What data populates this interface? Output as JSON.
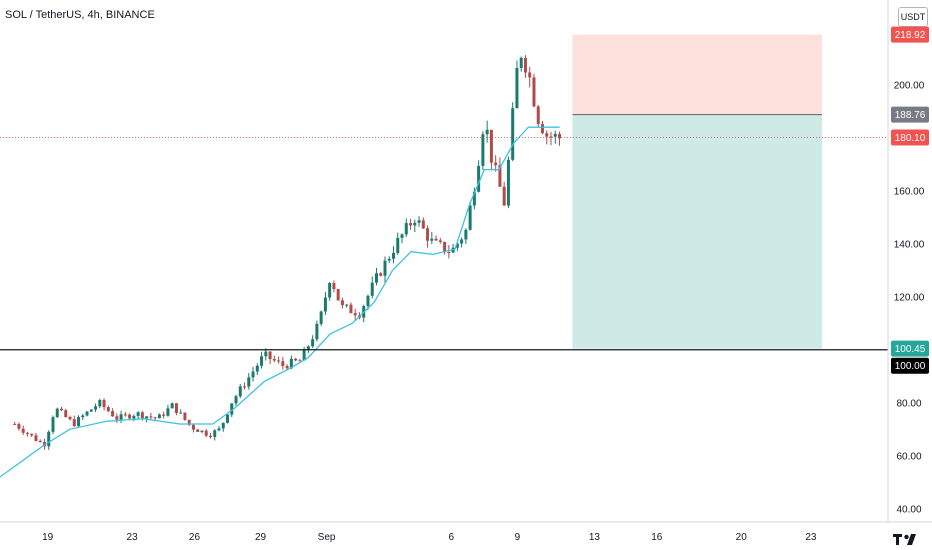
{
  "header": {
    "symbol_title": "SOL / TetherUS, 4h, BINANCE",
    "currency": "USDT"
  },
  "colors": {
    "up_candle": "#1b7a6e",
    "down_candle": "#b04b4b",
    "ma_line": "#3fc1e0",
    "target_zone": "#cdeae6",
    "stop_zone": "#fde0dc",
    "price_line": "#e53935"
  },
  "chart_data": {
    "type": "candlestick",
    "title": "SOL / TetherUS, 4h, BINANCE",
    "ylim": [
      35,
      232
    ],
    "y_ticks": [
      40,
      60,
      80,
      100,
      120,
      140,
      160,
      180,
      200
    ],
    "y_tick_labels": [
      "40.00",
      "60.00",
      "80.00",
      "100.00",
      "120.00",
      "140.00",
      "160.00",
      "180.00",
      "200.00"
    ],
    "x_ticks": [
      {
        "t": 0.9,
        "label": "19"
      },
      {
        "t": 3.2,
        "label": "23"
      },
      {
        "t": 4.9,
        "label": "26"
      },
      {
        "t": 6.7,
        "label": "29"
      },
      {
        "t": 8.5,
        "label": "Sep"
      },
      {
        "t": 11.9,
        "label": "6"
      },
      {
        "t": 13.7,
        "label": "9"
      },
      {
        "t": 15.8,
        "label": "13"
      },
      {
        "t": 17.5,
        "label": "16"
      },
      {
        "t": 19.8,
        "label": "20"
      },
      {
        "t": 21.7,
        "label": "23"
      }
    ],
    "x_range": [
      -0.4,
      23.8
    ],
    "candles_tmin": 0,
    "candles_tmax": 14.85,
    "close_path": [
      [
        0,
        72
      ],
      [
        0.8,
        64
      ],
      [
        1.1,
        78
      ],
      [
        1.6,
        72
      ],
      [
        2.3,
        80
      ],
      [
        2.8,
        74
      ],
      [
        3.3,
        76
      ],
      [
        3.9,
        74
      ],
      [
        4.3,
        79
      ],
      [
        4.8,
        71
      ],
      [
        5.3,
        68
      ],
      [
        5.6,
        70
      ],
      [
        5.9,
        80
      ],
      [
        6.4,
        90
      ],
      [
        6.8,
        98
      ],
      [
        7.3,
        94
      ],
      [
        7.8,
        96
      ],
      [
        8.3,
        110
      ],
      [
        8.6,
        128
      ],
      [
        8.9,
        116
      ],
      [
        9.4,
        114
      ],
      [
        9.9,
        128
      ],
      [
        10.4,
        140
      ],
      [
        10.9,
        150
      ],
      [
        11.4,
        140
      ],
      [
        11.9,
        137
      ],
      [
        12.3,
        145
      ],
      [
        12.6,
        168
      ],
      [
        12.8,
        188
      ],
      [
        13.0,
        172
      ],
      [
        13.35,
        155
      ],
      [
        13.55,
        185
      ],
      [
        13.75,
        214
      ],
      [
        14.0,
        205
      ],
      [
        14.25,
        188
      ],
      [
        14.5,
        181
      ],
      [
        14.85,
        180
      ]
    ],
    "ma_path": [
      [
        -0.4,
        52
      ],
      [
        0.8,
        64
      ],
      [
        1.5,
        70
      ],
      [
        2.5,
        73
      ],
      [
        3.5,
        74
      ],
      [
        4.5,
        72
      ],
      [
        5.4,
        72
      ],
      [
        6.0,
        78
      ],
      [
        6.8,
        88
      ],
      [
        7.5,
        93
      ],
      [
        8.0,
        97
      ],
      [
        8.6,
        106
      ],
      [
        9.2,
        110
      ],
      [
        9.8,
        118
      ],
      [
        10.3,
        130
      ],
      [
        10.8,
        137
      ],
      [
        11.4,
        136
      ],
      [
        12.0,
        138
      ],
      [
        12.4,
        155
      ],
      [
        12.8,
        168
      ],
      [
        13.2,
        168
      ],
      [
        13.6,
        178
      ],
      [
        14.0,
        184
      ],
      [
        14.85,
        184
      ]
    ],
    "horizontal_level": {
      "value": 100.0,
      "label": "100.00"
    },
    "current_price": {
      "value": 180.1,
      "label": "180.10"
    },
    "position": {
      "t_start": 15.2,
      "t_end": 22.0,
      "entry": {
        "value": 188.76,
        "label": "188.76"
      },
      "stop": {
        "value": 218.92,
        "label": "218.92"
      },
      "target": {
        "value": 100.45,
        "label": "100.45"
      }
    }
  }
}
